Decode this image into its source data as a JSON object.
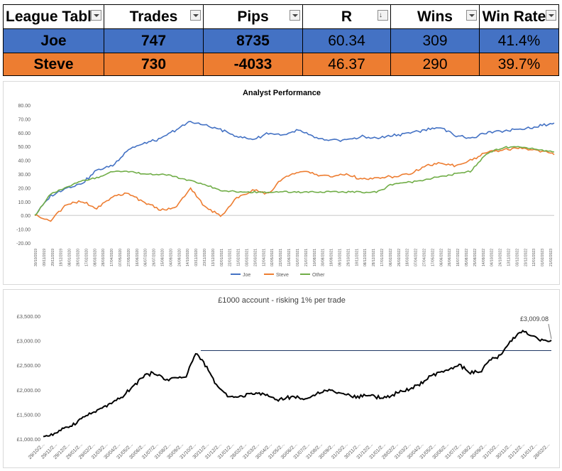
{
  "table": {
    "headers": [
      "League Tabl",
      "Trades",
      "Pips",
      "R",
      "Wins",
      "Win Rate"
    ],
    "rows": [
      {
        "name": "Joe",
        "trades": "747",
        "pips": "8735",
        "r": "60.34",
        "wins": "309",
        "win_rate": "41.4%",
        "color": "#4472c4"
      },
      {
        "name": "Steve",
        "trades": "730",
        "pips": "-4033",
        "r": "46.37",
        "wins": "290",
        "win_rate": "39.7%",
        "color": "#ed7d31"
      }
    ]
  },
  "chart_data": [
    {
      "type": "line",
      "title": "Analyst Performance",
      "ylim": [
        -20,
        80
      ],
      "yticks": [
        "80.00",
        "70.00",
        "60.00",
        "50.00",
        "40.00",
        "30.00",
        "20.00",
        "10.00",
        "0.00",
        "-10.00",
        "-20.00"
      ],
      "xticks": [
        "30/10/2019",
        "09/11/2019",
        "29/11/2019",
        "19/12/2019",
        "08/01/2020",
        "28/01/2020",
        "17/02/2020",
        "08/03/2020",
        "28/03/2020",
        "17/04/2020",
        "07/05/2020",
        "27/05/2020",
        "16/06/2020",
        "06/07/2020",
        "26/07/2020",
        "15/08/2020",
        "04/09/2020",
        "24/09/2020",
        "14/10/2020",
        "03/11/2020",
        "23/11/2020",
        "13/12/2020",
        "02/01/2021",
        "22/01/2021",
        "11/02/2021",
        "03/03/2021",
        "23/03/2021",
        "12/04/2021",
        "02/05/2021",
        "22/05/2021",
        "11/06/2021",
        "01/07/2021",
        "21/07/2021",
        "10/08/2021",
        "30/08/2021",
        "19/09/2021",
        "09/10/2021",
        "29/10/2021",
        "18/11/2021",
        "08/12/2021",
        "28/12/2021",
        "17/01/2022",
        "06/02/2022",
        "26/02/2022",
        "18/03/2022",
        "07/04/2022",
        "27/04/2022",
        "17/05/2022",
        "06/06/2022",
        "26/06/2022",
        "16/07/2022",
        "05/08/2022",
        "25/08/2022",
        "14/09/2022",
        "04/10/2022",
        "24/10/2022",
        "13/11/2022",
        "03/12/2022",
        "23/12/2022",
        "12/01/2023",
        "01/02/2023",
        "21/02/2023"
      ],
      "legend": [
        "Joe",
        "Steve",
        "Other"
      ],
      "legend_position": "bottom",
      "colors": {
        "Joe": "#4472c4",
        "Steve": "#ed7d31",
        "Other": "#70ad47"
      },
      "x": [
        0,
        0.03,
        0.06,
        0.09,
        0.12,
        0.15,
        0.18,
        0.21,
        0.24,
        0.27,
        0.3,
        0.33,
        0.36,
        0.39,
        0.42,
        0.45,
        0.48,
        0.51,
        0.54,
        0.57,
        0.6,
        0.63,
        0.66,
        0.69,
        0.72,
        0.75,
        0.78,
        0.81,
        0.84,
        0.87,
        0.9,
        0.93,
        0.96,
        1.0
      ],
      "series": [
        {
          "name": "Joe",
          "values": [
            0,
            14,
            20,
            23,
            33,
            36,
            48,
            52,
            55,
            62,
            68,
            65,
            62,
            57,
            55,
            60,
            58,
            62,
            56,
            54,
            55,
            57,
            56,
            58,
            60,
            62,
            64,
            58,
            56,
            60,
            61,
            63,
            64,
            67
          ]
        },
        {
          "name": "Steve",
          "values": [
            0,
            -4,
            8,
            10,
            5,
            14,
            16,
            10,
            4,
            5,
            20,
            5,
            0,
            13,
            18,
            16,
            28,
            32,
            30,
            28,
            30,
            26,
            27,
            28,
            30,
            35,
            38,
            36,
            40,
            46,
            47,
            49,
            48,
            44
          ]
        },
        {
          "name": "Other",
          "values": [
            0,
            15,
            20,
            25,
            27,
            32,
            32,
            30,
            30,
            28,
            25,
            22,
            18,
            17,
            17,
            17,
            17,
            17,
            17,
            17,
            17,
            17,
            17,
            23,
            24,
            26,
            28,
            30,
            32,
            45,
            49,
            50,
            48,
            46
          ]
        }
      ]
    },
    {
      "type": "line",
      "title": "£1000 account - risking 1% per trade",
      "ylim": [
        1000,
        3500
      ],
      "yticks": [
        "£3,500.00",
        "£3,000.00",
        "£2,500.00",
        "£2,000.00",
        "£1,500.00",
        "£1,000.00"
      ],
      "xticks": [
        "29/10/2...",
        "29/11/2...",
        "29/12/2...",
        "29/01/2...",
        "29/02/2...",
        "31/03/2...",
        "30/04/2...",
        "31/05/2...",
        "30/06/2...",
        "31/07/2...",
        "31/08/2...",
        "30/09/2...",
        "31/10/2...",
        "30/11/2...",
        "31/12/2...",
        "31/01/2...",
        "28/02/2...",
        "31/03/2...",
        "30/04/2...",
        "31/05/2...",
        "30/06/2...",
        "31/07/2...",
        "31/08/2...",
        "30/09/2...",
        "31/10/2...",
        "30/11/2...",
        "31/12/2...",
        "31/01/2...",
        "28/02/2...",
        "31/03/2...",
        "30/04/2...",
        "31/05/2...",
        "30/06/2...",
        "31/07/2...",
        "31/08/2...",
        "30/09/2...",
        "31/10/2...",
        "30/11/2...",
        "31/12/2...",
        "31/01/2...",
        "28/02/2..."
      ],
      "annotation": "£3,009.08",
      "reference_level": 2800,
      "color": "#000000",
      "reference_color": "#1f3864",
      "x": [
        0,
        0.02,
        0.04,
        0.06,
        0.08,
        0.1,
        0.12,
        0.14,
        0.16,
        0.18,
        0.2,
        0.22,
        0.24,
        0.26,
        0.28,
        0.3,
        0.32,
        0.34,
        0.36,
        0.38,
        0.4,
        0.42,
        0.44,
        0.46,
        0.48,
        0.5,
        0.52,
        0.54,
        0.56,
        0.58,
        0.6,
        0.62,
        0.64,
        0.66,
        0.68,
        0.7,
        0.72,
        0.74,
        0.76,
        0.78,
        0.8,
        0.82,
        0.84,
        0.86,
        0.88,
        0.9,
        0.92,
        0.94,
        0.96,
        0.98,
        1.0
      ],
      "values": [
        1050,
        1100,
        1200,
        1300,
        1450,
        1550,
        1650,
        1750,
        1900,
        2100,
        2300,
        2350,
        2200,
        2250,
        2250,
        2750,
        2500,
        2100,
        1900,
        1850,
        1900,
        1950,
        1900,
        1800,
        1850,
        1850,
        1800,
        1950,
        2000,
        1950,
        1900,
        1850,
        1900,
        1850,
        1850,
        1950,
        2000,
        2100,
        2250,
        2350,
        2400,
        2500,
        2350,
        2350,
        2600,
        2700,
        3000,
        3200,
        3100,
        3000,
        3009
      ]
    }
  ]
}
